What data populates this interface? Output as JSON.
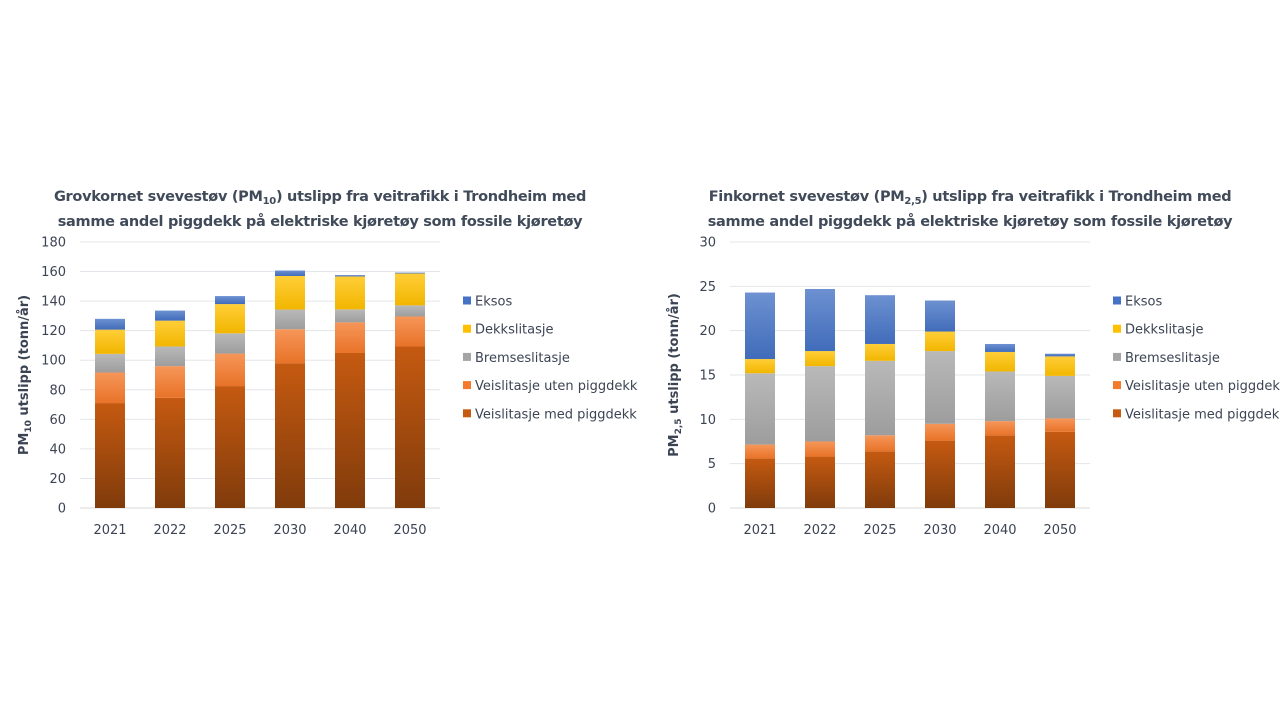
{
  "chart_data": [
    {
      "type": "bar",
      "stacked": true,
      "title_parts": {
        "pre": "Grovkornet svevestøv (PM",
        "sub": "10",
        "post": ") utslipp fra veitrafikk i Trondheim med",
        "line2": "samme andel piggdekk på elektriske kjøretøy som fossile kjøretøy"
      },
      "title": "Grovkornet svevestøv (PM10) utslipp fra veitrafikk i Trondheim med samme andel piggdekk på elektriske kjøretøy som fossile kjøretøy",
      "ylabel_parts": {
        "pre": "PM",
        "sub": "10",
        "post": " utslipp (tonn/år)"
      },
      "ylabel": "PM10 utslipp (tonn/år)",
      "xlabel": "",
      "categories": [
        "2021",
        "2022",
        "2025",
        "2030",
        "2040",
        "2050"
      ],
      "ylim": [
        0,
        180
      ],
      "yticks": [
        0,
        20,
        40,
        60,
        80,
        100,
        120,
        140,
        160,
        180
      ],
      "grid": true,
      "legend_position": "right",
      "series": [
        {
          "name": "Veislitasje med piggdekk",
          "color": "#c55a11",
          "values": [
            71,
            74.6,
            82.5,
            98,
            104.9,
            109.3
          ]
        },
        {
          "name": "Veislitasje uten piggdekk",
          "color": "#f4792a",
          "values": [
            20.7,
            21.4,
            22,
            23,
            20.7,
            20.3
          ]
        },
        {
          "name": "Bremseslitasje",
          "color": "#a5a5a5",
          "values": [
            12.6,
            13.3,
            13.7,
            13.3,
            8.8,
            7.5
          ]
        },
        {
          "name": "Dekkslitasje",
          "color": "#ffc000",
          "values": [
            16.4,
            17.5,
            19.8,
            22.7,
            22.3,
            21.6
          ]
        },
        {
          "name": "Eksos",
          "color": "#4472c4",
          "values": [
            7.3,
            6.8,
            5.4,
            3.7,
            0.9,
            0.6
          ]
        }
      ]
    },
    {
      "type": "bar",
      "stacked": true,
      "title_parts": {
        "pre": "Finkornet svevestøv (PM",
        "sub": "2,5",
        "post": ") utslipp fra veitrafikk i Trondheim med",
        "line2": "samme andel piggdekk på elektriske kjøretøy som fossile kjøretøy"
      },
      "title": "Finkornet svevestøv (PM2,5) utslipp fra veitrafikk i Trondheim med samme andel piggdekk på elektriske kjøretøy som fossile kjøretøy",
      "ylabel_parts": {
        "pre": "PM",
        "sub": "2,5",
        "post": " utslipp (tonn/år)"
      },
      "ylabel": "PM2,5 utslipp (tonn/år)",
      "xlabel": "",
      "categories": [
        "2021",
        "2022",
        "2025",
        "2030",
        "2040",
        "2050"
      ],
      "ylim": [
        0,
        30
      ],
      "yticks": [
        0,
        5,
        10,
        15,
        20,
        25,
        30
      ],
      "grid": true,
      "legend_position": "right",
      "series": [
        {
          "name": "Veislitasje med piggdekk",
          "color": "#c55a11",
          "values": [
            5.6,
            5.8,
            6.4,
            7.6,
            8.2,
            8.6
          ]
        },
        {
          "name": "Veislitasje uten piggdekk",
          "color": "#f4792a",
          "values": [
            1.55,
            1.7,
            1.8,
            1.9,
            1.6,
            1.5
          ]
        },
        {
          "name": "Bremseslitasje",
          "color": "#a5a5a5",
          "values": [
            8.05,
            8.5,
            8.4,
            8.2,
            5.6,
            4.8
          ]
        },
        {
          "name": "Dekkslitasje",
          "color": "#ffc000",
          "values": [
            1.6,
            1.7,
            1.9,
            2.2,
            2.2,
            2.2
          ]
        },
        {
          "name": "Eksos",
          "color": "#4472c4",
          "values": [
            7.5,
            7.0,
            5.5,
            3.5,
            0.9,
            0.3
          ]
        }
      ]
    }
  ]
}
